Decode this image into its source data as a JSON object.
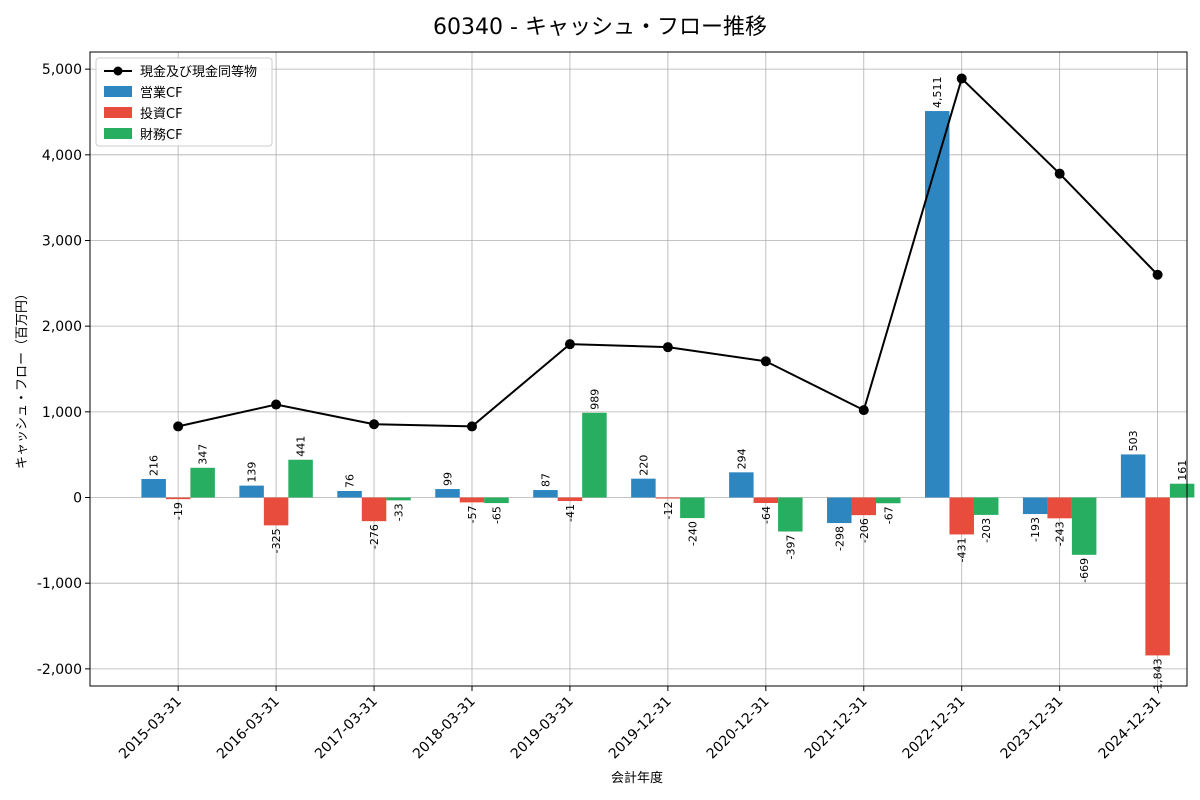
{
  "chart_data": {
    "type": "bar",
    "title": "60340 - キャッシュ・フロー推移",
    "xlabel": "会計年度",
    "ylabel": "キャッシュ・フロー（百万円）",
    "categories": [
      "2015-03-31",
      "2016-03-31",
      "2017-03-31",
      "2018-03-31",
      "2019-03-31",
      "2019-12-31",
      "2020-12-31",
      "2021-12-31",
      "2022-12-31",
      "2023-12-31",
      "2024-12-31"
    ],
    "ylim": [
      -2200,
      5200
    ],
    "yticks": [
      -2000,
      -1000,
      0,
      1000,
      2000,
      3000,
      4000,
      5000
    ],
    "ytick_labels": [
      "-2,000",
      "-1,000",
      "0",
      "1,000",
      "2,000",
      "3,000",
      "4,000",
      "5,000"
    ],
    "grid": true,
    "legend_position": "top-left",
    "series": [
      {
        "name": "営業CF",
        "type": "bar",
        "color": "#2e86c1",
        "values": [
          216,
          139,
          76,
          99,
          87,
          220,
          294,
          -298,
          4511,
          -193,
          503
        ],
        "labels": [
          "216",
          "139",
          "76",
          "99",
          "87",
          "220",
          "294",
          "-298",
          "4,511",
          "-193",
          "503"
        ]
      },
      {
        "name": "投資CF",
        "type": "bar",
        "color": "#e74c3c",
        "values": [
          -19,
          -325,
          -276,
          -57,
          -41,
          -12,
          -64,
          -206,
          -431,
          -243,
          -1843
        ],
        "labels": [
          "-19",
          "-325",
          "-276",
          "-57",
          "-41",
          "-12",
          "-64",
          "-206",
          "-431",
          "-243",
          "-1,843"
        ]
      },
      {
        "name": "財務CF",
        "type": "bar",
        "color": "#27ae60",
        "values": [
          347,
          441,
          -33,
          -65,
          989,
          -240,
          -397,
          -67,
          -203,
          -669,
          161
        ],
        "labels": [
          "347",
          "441",
          "-33",
          "-65",
          "989",
          "-240",
          "-397",
          "-67",
          "-203",
          "-669",
          "161"
        ]
      },
      {
        "name": "現金及び現金同等物",
        "type": "line",
        "color": "#000000",
        "values": [
          830,
          1085,
          855,
          830,
          1790,
          1755,
          1590,
          1020,
          4890,
          3780,
          2600
        ]
      }
    ]
  }
}
